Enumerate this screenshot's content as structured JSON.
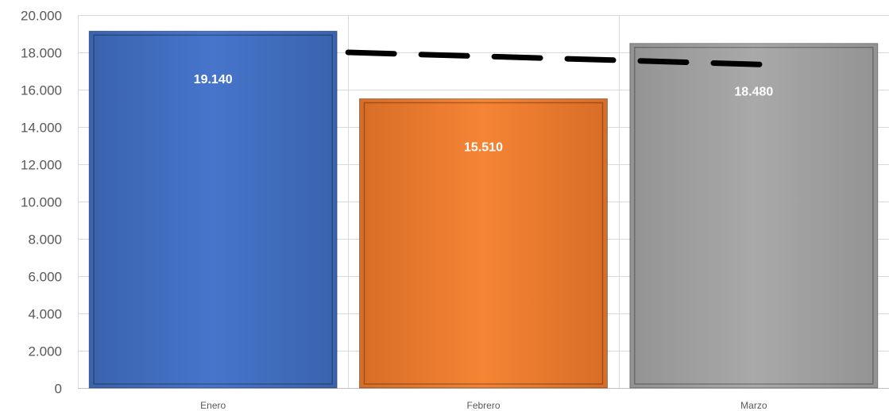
{
  "chart_data": {
    "type": "bar",
    "categories": [
      "Enero",
      "Febrero",
      "Marzo"
    ],
    "values": [
      19140,
      15510,
      18480
    ],
    "value_labels": [
      "19.140",
      "15.510",
      "18.480"
    ],
    "bar_colors": [
      "#4472C4",
      "#ED7D31",
      "#A5A5A5"
    ],
    "ylim": [
      0,
      20000
    ],
    "yticks": [
      0,
      2000,
      4000,
      6000,
      8000,
      10000,
      12000,
      14000,
      16000,
      18000,
      20000
    ],
    "ytick_labels": [
      "0",
      "2.000",
      "4.000",
      "6.000",
      "8.000",
      "10.000",
      "12.000",
      "14.000",
      "16.000",
      "18.000",
      "20.000"
    ],
    "grid": true,
    "legend": "none",
    "trendline": {
      "type": "linear",
      "style": "dashed",
      "color": "#000000",
      "start": 18000,
      "end": 17350
    }
  }
}
